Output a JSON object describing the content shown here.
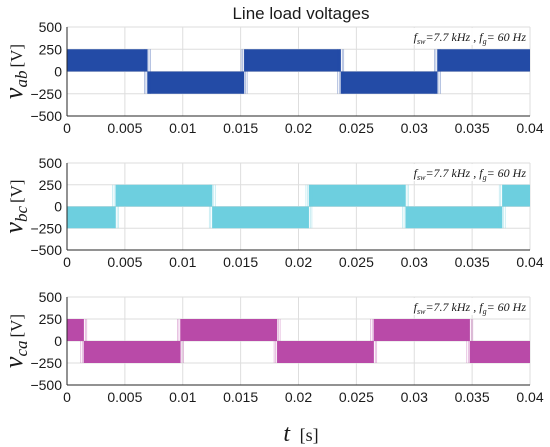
{
  "title": "Line load voltages",
  "xlabel": {
    "symbol": "t",
    "unit": "[s]"
  },
  "chart_data": [
    {
      "type": "area",
      "name": "ab",
      "ylabel": {
        "symbol": "v",
        "sub": "ab",
        "unit": "[V]"
      },
      "annotation": "f_sw=7.7 kHz , f_g= 60 Hz",
      "color": "#234ba6",
      "xlim": [
        0,
        0.04
      ],
      "ylim": [
        -500,
        500
      ],
      "xticks": [
        "0",
        "0.005",
        "0.01",
        "0.015",
        "0.02",
        "0.025",
        "0.03",
        "0.035",
        "0.04"
      ],
      "yticks": [
        "500",
        "250",
        "0",
        "−250",
        "−500"
      ],
      "segments": [
        {
          "x0": 0.0,
          "x1": 0.00695,
          "sign": 1
        },
        {
          "x0": 0.00695,
          "x1": 0.0153,
          "sign": -1
        },
        {
          "x0": 0.0153,
          "x1": 0.02365,
          "sign": 1
        },
        {
          "x0": 0.02365,
          "x1": 0.032,
          "sign": -1
        },
        {
          "x0": 0.032,
          "x1": 0.04,
          "sign": 1
        }
      ],
      "amplitude": 250
    },
    {
      "type": "area",
      "name": "bc",
      "ylabel": {
        "symbol": "v",
        "sub": "bc",
        "unit": "[V]"
      },
      "annotation": "f_sw=7.7 kHz , f_g= 60 Hz",
      "color": "#6dcfdf",
      "xlim": [
        0,
        0.04
      ],
      "ylim": [
        -500,
        500
      ],
      "xticks": [
        "0",
        "0.005",
        "0.01",
        "0.015",
        "0.02",
        "0.025",
        "0.03",
        "0.035",
        "0.04"
      ],
      "yticks": [
        "500",
        "250",
        "0",
        "−250",
        "−500"
      ],
      "segments": [
        {
          "x0": 0.0,
          "x1": 0.0042,
          "sign": -1
        },
        {
          "x0": 0.0042,
          "x1": 0.01255,
          "sign": 1
        },
        {
          "x0": 0.01255,
          "x1": 0.0209,
          "sign": -1
        },
        {
          "x0": 0.0209,
          "x1": 0.02925,
          "sign": 1
        },
        {
          "x0": 0.02925,
          "x1": 0.0376,
          "sign": -1
        },
        {
          "x0": 0.0376,
          "x1": 0.04,
          "sign": 1
        }
      ],
      "amplitude": 250
    },
    {
      "type": "area",
      "name": "ca",
      "ylabel": {
        "symbol": "v",
        "sub": "ca",
        "unit": "[V]"
      },
      "annotation": "f_sw=7.7 kHz , f_g= 60 Hz",
      "color": "#b94aa8",
      "xlim": [
        0,
        0.04
      ],
      "ylim": [
        -500,
        500
      ],
      "xticks": [
        "0",
        "0.005",
        "0.01",
        "0.015",
        "0.02",
        "0.025",
        "0.03",
        "0.035",
        "0.04"
      ],
      "yticks": [
        "500",
        "250",
        "0",
        "−250",
        "−500"
      ],
      "segments": [
        {
          "x0": 0.0,
          "x1": 0.00145,
          "sign": 1
        },
        {
          "x0": 0.00145,
          "x1": 0.0098,
          "sign": -1
        },
        {
          "x0": 0.0098,
          "x1": 0.01815,
          "sign": 1
        },
        {
          "x0": 0.01815,
          "x1": 0.0265,
          "sign": -1
        },
        {
          "x0": 0.0265,
          "x1": 0.0348,
          "sign": 1
        },
        {
          "x0": 0.0348,
          "x1": 0.04,
          "sign": -1
        }
      ],
      "amplitude": 250
    }
  ],
  "annotation_parts": {
    "f": "f",
    "sw": "sw",
    "mid": "=7.7 kHz , ",
    "g": "g",
    "end": "= 60 Hz"
  }
}
